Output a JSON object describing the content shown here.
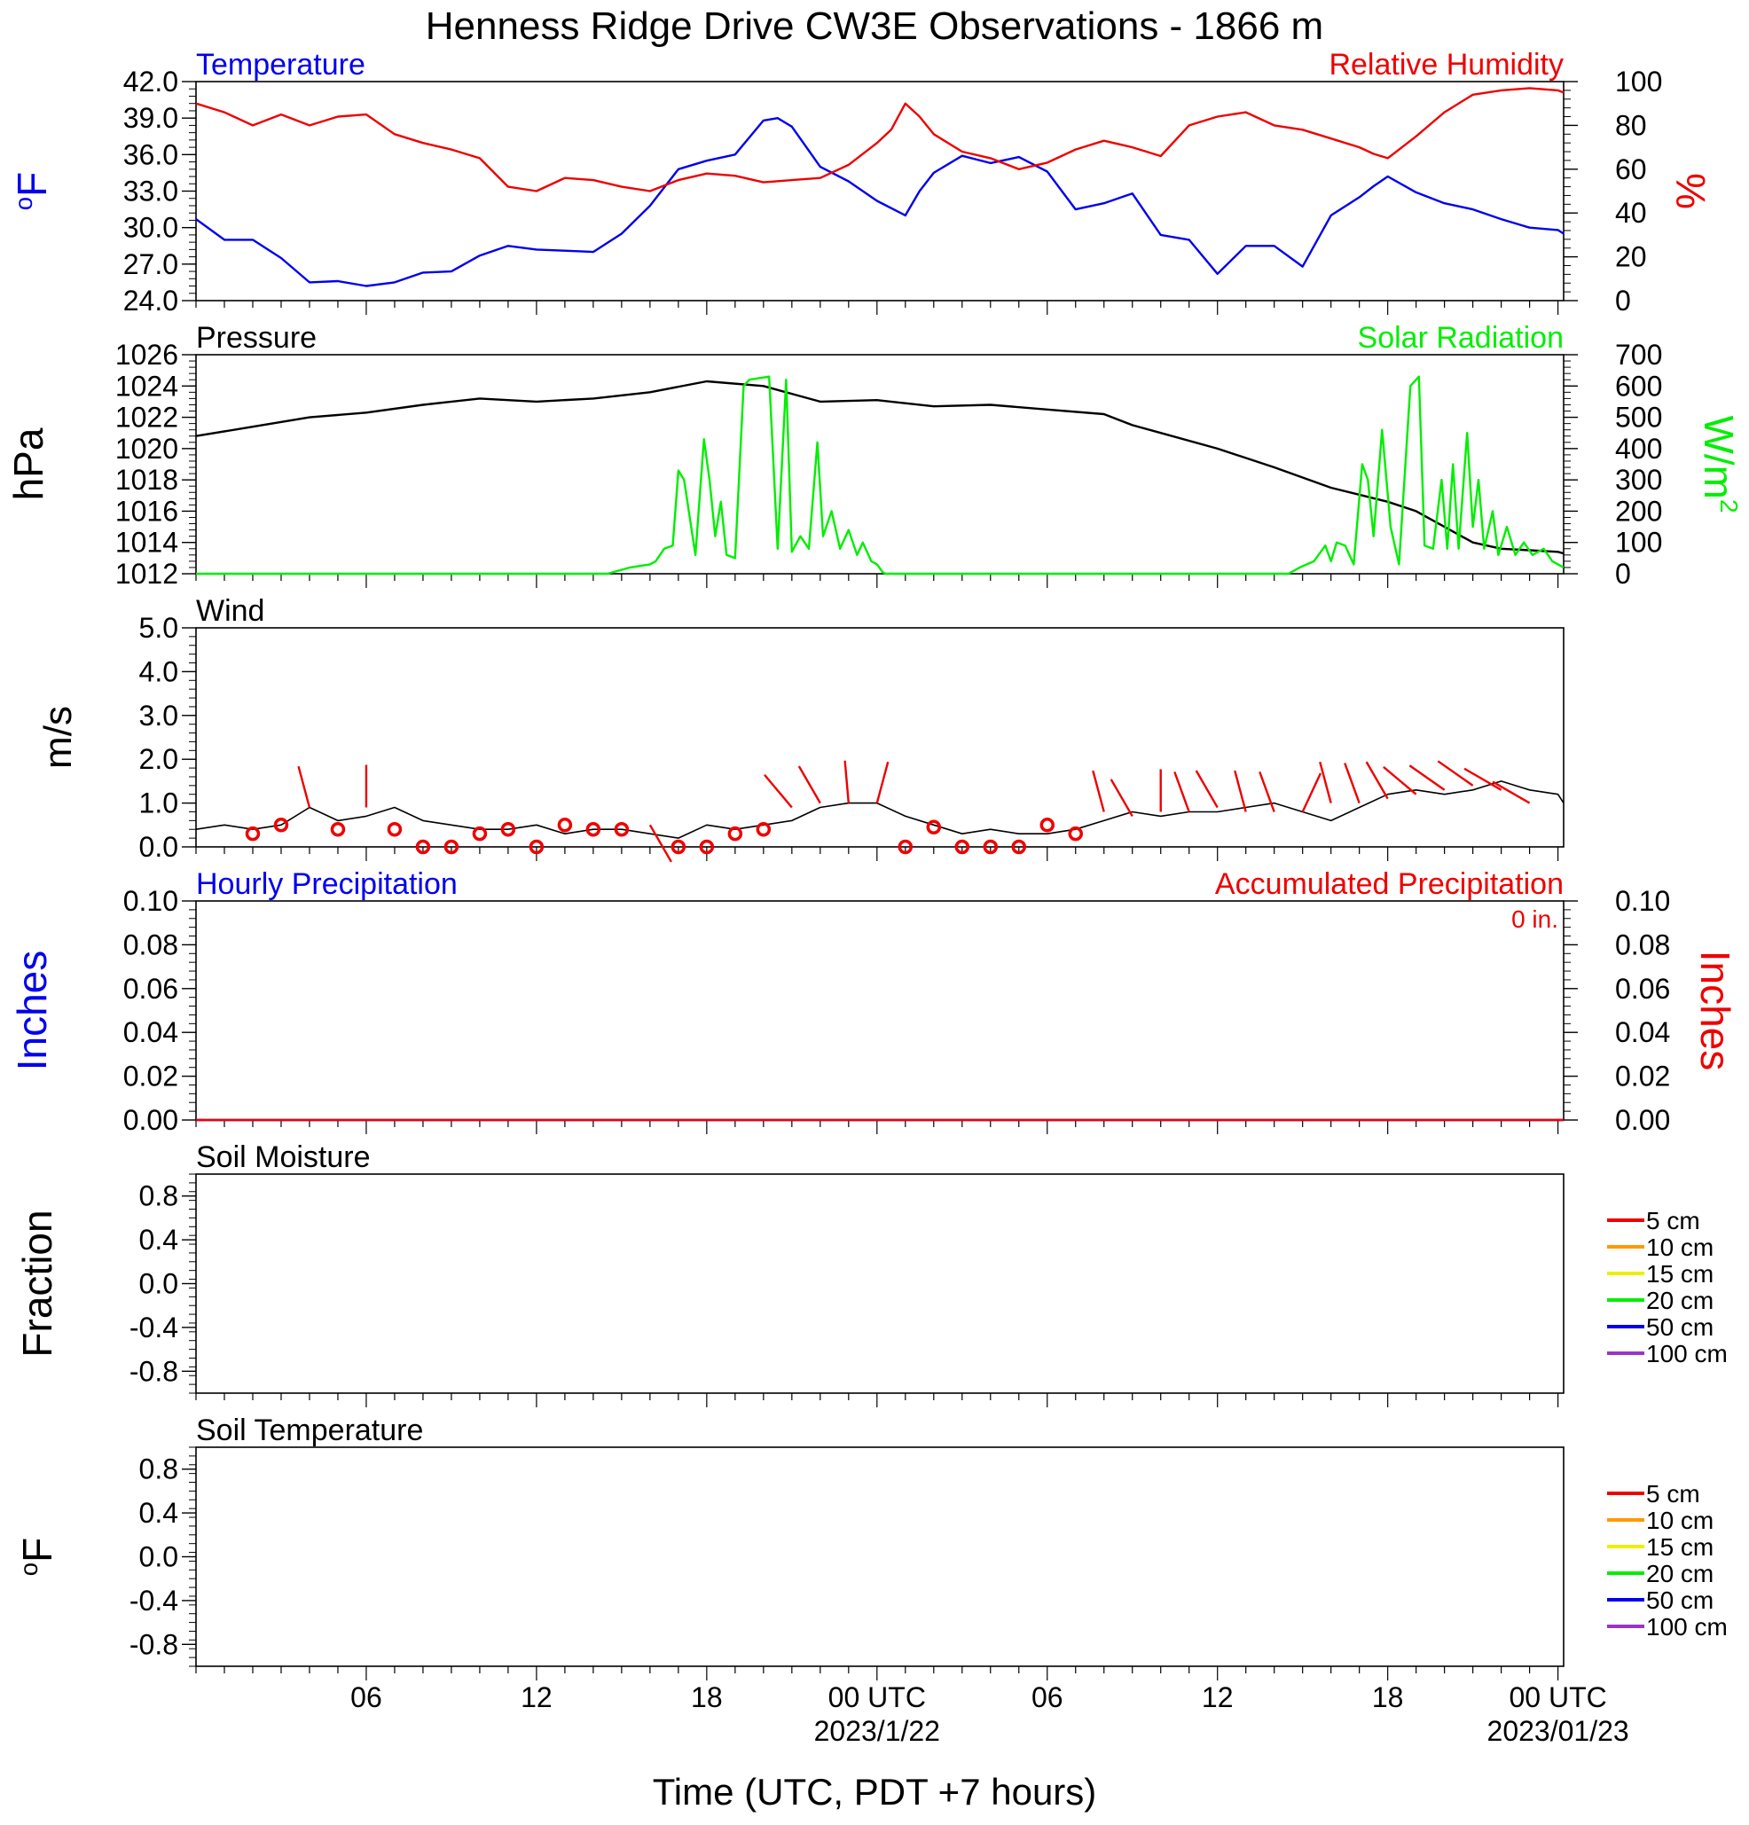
{
  "title": "Henness Ridge Drive CW3E Observations - 1866 m",
  "xlabel": "Time (UTC, PDT +7 hours)",
  "x_ticks": [
    {
      "h": 6,
      "label": "06"
    },
    {
      "h": 12,
      "label": "12"
    },
    {
      "h": 18,
      "label": "18"
    },
    {
      "h": 24,
      "label": "00 UTC",
      "sub": "2023/1/22"
    },
    {
      "h": 30,
      "label": "06"
    },
    {
      "h": 36,
      "label": "12"
    },
    {
      "h": 42,
      "label": "18"
    },
    {
      "h": 48,
      "label": "00 UTC",
      "sub": "2023/01/23"
    }
  ],
  "colors": {
    "temperature": "#0000ee",
    "humidity": "#ee0000",
    "pressure": "#000000",
    "solar": "#00ee00",
    "wind": "#000000",
    "wind_barb": "#ee0000",
    "precip_hourly": "#0000ee",
    "precip_accum": "#ee0000"
  },
  "chart_data": [
    {
      "id": "temp_rh",
      "type": "line",
      "left_title": "Temperature",
      "right_title": "Relative Humidity",
      "ylabel_left": "oF",
      "ylabel_right": "%",
      "ylim_left": [
        24,
        42
      ],
      "ylim_right": [
        0,
        100
      ],
      "yticks_left": [
        "24.0",
        "27.0",
        "30.0",
        "33.0",
        "36.0",
        "39.0",
        "42.0"
      ],
      "yticks_right": [
        "0",
        "20",
        "40",
        "60",
        "80",
        "100"
      ],
      "x_range_hours": [
        0,
        48.2
      ],
      "series": [
        {
          "name": "Temperature",
          "axis": "left",
          "color": "#0000ee",
          "x": [
            0,
            1,
            2,
            3,
            4,
            5,
            6,
            7,
            8,
            9,
            10,
            11,
            12,
            13,
            14,
            15,
            16,
            17,
            18,
            19,
            20,
            20.5,
            21,
            22,
            23,
            24,
            25,
            25.5,
            26,
            27,
            28,
            29,
            30,
            31,
            32,
            33,
            34,
            35,
            36,
            37,
            38,
            39,
            40,
            41,
            41.5,
            42,
            43,
            44,
            45,
            46,
            47,
            48,
            48.2
          ],
          "y": [
            30.7,
            29.0,
            29.0,
            27.5,
            25.5,
            25.6,
            25.2,
            25.5,
            26.3,
            26.4,
            27.7,
            28.5,
            28.2,
            28.1,
            28.0,
            29.5,
            31.8,
            34.8,
            35.5,
            36.0,
            38.8,
            39.0,
            38.3,
            35.0,
            33.8,
            32.2,
            31.0,
            33.0,
            34.5,
            35.9,
            35.3,
            35.8,
            34.6,
            31.5,
            32.0,
            32.8,
            29.4,
            29.0,
            26.2,
            28.5,
            28.5,
            26.8,
            31.0,
            32.5,
            33.4,
            34.2,
            32.9,
            32.0,
            31.5,
            30.7,
            30.0,
            29.8,
            29.5
          ]
        },
        {
          "name": "Relative Humidity",
          "axis": "right",
          "color": "#ee0000",
          "x": [
            0,
            1,
            2,
            3,
            4,
            5,
            6,
            7,
            8,
            9,
            10,
            11,
            12,
            13,
            14,
            15,
            16,
            17,
            18,
            19,
            20,
            21,
            22,
            23,
            24,
            24.5,
            25,
            25.5,
            26,
            27,
            28,
            29,
            30,
            31,
            32,
            33,
            34,
            35,
            36,
            37,
            38,
            39,
            40,
            41,
            41.5,
            42,
            43,
            44,
            45,
            46,
            47,
            48,
            48.2
          ],
          "y": [
            90,
            86,
            80,
            85,
            80,
            84,
            85,
            76,
            72,
            69,
            65,
            52,
            50,
            56,
            55,
            52,
            50,
            55,
            58,
            57,
            54,
            55,
            56,
            62,
            72,
            78,
            90,
            84,
            76,
            68,
            65,
            60,
            63,
            69,
            73,
            70,
            66,
            80,
            84,
            86,
            80,
            78,
            74,
            70,
            67,
            65,
            75,
            86,
            94,
            96,
            97,
            96,
            95
          ]
        }
      ]
    },
    {
      "id": "pressure_solar",
      "type": "line",
      "left_title": "Pressure",
      "right_title": "Solar Radiation",
      "ylabel_left": "hPa",
      "ylabel_right": "W/m2",
      "ylim_left": [
        1012,
        1026
      ],
      "ylim_right": [
        0,
        700
      ],
      "yticks_left": [
        "1012",
        "1014",
        "1016",
        "1018",
        "1020",
        "1022",
        "1024",
        "1026"
      ],
      "yticks_right": [
        "0",
        "100",
        "200",
        "300",
        "400",
        "500",
        "600",
        "700"
      ],
      "x_range_hours": [
        0,
        48.2
      ],
      "series": [
        {
          "name": "Pressure",
          "axis": "left",
          "color": "#000000",
          "x": [
            0,
            2,
            4,
            6,
            8,
            10,
            12,
            14,
            16,
            18,
            20,
            21,
            22,
            24,
            26,
            28,
            30,
            32,
            33,
            34,
            36,
            38,
            40,
            42,
            43,
            44,
            45,
            46,
            47,
            48,
            48.2
          ],
          "y": [
            1020.8,
            1021.4,
            1022.0,
            1022.3,
            1022.8,
            1023.2,
            1023.0,
            1023.2,
            1023.6,
            1024.3,
            1024.0,
            1023.5,
            1023.0,
            1023.1,
            1022.7,
            1022.8,
            1022.5,
            1022.2,
            1021.5,
            1021.0,
            1020.0,
            1018.8,
            1017.5,
            1016.6,
            1016.0,
            1015.0,
            1014.0,
            1013.6,
            1013.5,
            1013.4,
            1013.3
          ]
        },
        {
          "name": "Solar Radiation",
          "axis": "right",
          "color": "#00ee00",
          "x": [
            0,
            14.5,
            15.3,
            16.0,
            16.2,
            16.5,
            16.8,
            17.0,
            17.2,
            17.4,
            17.6,
            17.9,
            18.1,
            18.3,
            18.5,
            18.7,
            19.0,
            19.3,
            19.5,
            20.2,
            20.5,
            20.8,
            21.0,
            21.3,
            21.6,
            21.9,
            22.1,
            22.4,
            22.7,
            23.0,
            23.3,
            23.5,
            23.8,
            24.0,
            24.2,
            24.3,
            38.5,
            38.9,
            39.4,
            39.8,
            40.0,
            40.2,
            40.5,
            40.8,
            41.1,
            41.3,
            41.5,
            41.8,
            42.1,
            42.4,
            42.8,
            43.1,
            43.3,
            43.6,
            43.9,
            44.1,
            44.3,
            44.5,
            44.8,
            45.0,
            45.2,
            45.4,
            45.7,
            45.9,
            46.2,
            46.5,
            46.8,
            47.1,
            47.5,
            47.8,
            48.2
          ],
          "y": [
            0,
            0,
            20,
            30,
            40,
            80,
            90,
            330,
            300,
            180,
            60,
            430,
            300,
            120,
            230,
            60,
            50,
            600,
            620,
            630,
            80,
            620,
            70,
            120,
            80,
            420,
            120,
            200,
            80,
            140,
            60,
            100,
            40,
            30,
            5,
            0,
            0,
            20,
            40,
            90,
            40,
            100,
            90,
            30,
            350,
            300,
            120,
            460,
            150,
            30,
            600,
            630,
            90,
            80,
            300,
            80,
            350,
            80,
            450,
            150,
            300,
            80,
            200,
            60,
            150,
            60,
            100,
            60,
            80,
            40,
            20
          ]
        }
      ]
    },
    {
      "id": "wind",
      "type": "line",
      "left_title": "Wind",
      "ylabel_left": "m/s",
      "ylim_left": [
        0,
        5
      ],
      "yticks_left": [
        "0.0",
        "1.0",
        "2.0",
        "3.0",
        "4.0",
        "5.0"
      ],
      "x_range_hours": [
        0,
        48.2
      ],
      "series": [
        {
          "name": "Wind",
          "axis": "left",
          "color": "#000000",
          "x": [
            0,
            1,
            2,
            3,
            4,
            5,
            6,
            7,
            8,
            9,
            10,
            11,
            12,
            13,
            14,
            15,
            16,
            17,
            18,
            19,
            20,
            21,
            22,
            23,
            24,
            25,
            26,
            27,
            28,
            29,
            30,
            31,
            32,
            33,
            34,
            35,
            36,
            37,
            38,
            39,
            40,
            41,
            42,
            43,
            44,
            45,
            46,
            47,
            48,
            48.2
          ],
          "y": [
            0.4,
            0.5,
            0.4,
            0.5,
            0.9,
            0.6,
            0.7,
            0.9,
            0.6,
            0.5,
            0.4,
            0.4,
            0.5,
            0.3,
            0.4,
            0.4,
            0.3,
            0.2,
            0.5,
            0.4,
            0.5,
            0.6,
            0.9,
            1.0,
            1.0,
            0.7,
            0.5,
            0.3,
            0.4,
            0.3,
            0.3,
            0.4,
            0.6,
            0.8,
            0.7,
            0.8,
            0.8,
            0.9,
            1.0,
            0.8,
            0.6,
            0.9,
            1.2,
            1.3,
            1.2,
            1.3,
            1.5,
            1.3,
            1.2,
            1.0
          ]
        }
      ],
      "calm_markers": [
        {
          "h": 2,
          "v": 0.3
        },
        {
          "h": 3,
          "v": 0.5
        },
        {
          "h": 5,
          "v": 0.4
        },
        {
          "h": 7,
          "v": 0.4
        },
        {
          "h": 8,
          "v": 0.0
        },
        {
          "h": 9,
          "v": 0.0
        },
        {
          "h": 10,
          "v": 0.3
        },
        {
          "h": 11,
          "v": 0.4
        },
        {
          "h": 12,
          "v": 0.0
        },
        {
          "h": 13,
          "v": 0.5
        },
        {
          "h": 14,
          "v": 0.4
        },
        {
          "h": 15,
          "v": 0.4
        },
        {
          "h": 17,
          "v": 0.0
        },
        {
          "h": 18,
          "v": 0.0
        },
        {
          "h": 19,
          "v": 0.3
        },
        {
          "h": 20,
          "v": 0.4
        },
        {
          "h": 25,
          "v": 0.0
        },
        {
          "h": 26,
          "v": 0.45
        },
        {
          "h": 27,
          "v": 0.0
        },
        {
          "h": 28,
          "v": 0.0
        },
        {
          "h": 29,
          "v": 0.0
        },
        {
          "h": 30,
          "v": 0.5
        },
        {
          "h": 31,
          "v": 0.3
        }
      ],
      "barbs": [
        {
          "h": 4,
          "v": 0.9,
          "dir_deg": 345
        },
        {
          "h": 6,
          "v": 0.9,
          "dir_deg": 0
        },
        {
          "h": 16,
          "v": 0.5,
          "dir_deg": 150
        },
        {
          "h": 21,
          "v": 0.9,
          "dir_deg": 320
        },
        {
          "h": 22,
          "v": 1.0,
          "dir_deg": 330
        },
        {
          "h": 23,
          "v": 1.0,
          "dir_deg": 355
        },
        {
          "h": 24,
          "v": 1.0,
          "dir_deg": 15
        },
        {
          "h": 32,
          "v": 0.8,
          "dir_deg": 345
        },
        {
          "h": 33,
          "v": 0.7,
          "dir_deg": 330
        },
        {
          "h": 34,
          "v": 0.8,
          "dir_deg": 0
        },
        {
          "h": 35,
          "v": 0.8,
          "dir_deg": 340
        },
        {
          "h": 36,
          "v": 0.9,
          "dir_deg": 330
        },
        {
          "h": 37,
          "v": 0.8,
          "dir_deg": 345
        },
        {
          "h": 38,
          "v": 0.8,
          "dir_deg": 340
        },
        {
          "h": 39,
          "v": 0.8,
          "dir_deg": 25
        },
        {
          "h": 40,
          "v": 1.0,
          "dir_deg": 345
        },
        {
          "h": 41,
          "v": 1.0,
          "dir_deg": 340
        },
        {
          "h": 42,
          "v": 1.1,
          "dir_deg": 330
        },
        {
          "h": 43,
          "v": 1.2,
          "dir_deg": 310
        },
        {
          "h": 44,
          "v": 1.3,
          "dir_deg": 305
        },
        {
          "h": 45,
          "v": 1.4,
          "dir_deg": 305
        },
        {
          "h": 46,
          "v": 1.3,
          "dir_deg": 300
        },
        {
          "h": 47,
          "v": 1.0,
          "dir_deg": 300
        }
      ]
    },
    {
      "id": "precip",
      "type": "line",
      "left_title": "Hourly Precipitation",
      "right_title": "Accumulated Precipitation",
      "annotation": "0 in.",
      "ylabel_left": "Inches",
      "ylabel_right": "Inches",
      "ylim_left": [
        0,
        0.1
      ],
      "ylim_right": [
        0,
        0.1
      ],
      "yticks_left": [
        "0.00",
        "0.02",
        "0.04",
        "0.06",
        "0.08",
        "0.10"
      ],
      "yticks_right": [
        "0.00",
        "0.02",
        "0.04",
        "0.06",
        "0.08",
        "0.10"
      ],
      "x_range_hours": [
        0,
        48.2
      ],
      "series": [
        {
          "name": "Hourly Precipitation",
          "axis": "left",
          "color": "#0000ee",
          "x": [
            0,
            48.2
          ],
          "y": [
            0,
            0
          ]
        },
        {
          "name": "Accumulated Precipitation",
          "axis": "right",
          "color": "#ee0000",
          "x": [
            0,
            48.2
          ],
          "y": [
            0,
            0
          ]
        }
      ]
    },
    {
      "id": "soil_moisture",
      "type": "line",
      "left_title": "Soil Moisture",
      "ylabel_left": "Fraction",
      "ylim_left": [
        -1.0,
        1.0
      ],
      "yticks_left": [
        "-0.8",
        "-0.4",
        "0.0",
        "0.4",
        "0.8"
      ],
      "ytick_values": [
        -0.8,
        -0.4,
        0.0,
        0.4,
        0.8
      ],
      "legend": [
        {
          "label": "5 cm",
          "color": "#ee0000"
        },
        {
          "label": "10 cm",
          "color": "#ff9900"
        },
        {
          "label": "15 cm",
          "color": "#eeee00"
        },
        {
          "label": "20 cm",
          "color": "#00ee00"
        },
        {
          "label": "50 cm",
          "color": "#0000ee"
        },
        {
          "label": "100 cm",
          "color": "#9933cc"
        }
      ],
      "series": []
    },
    {
      "id": "soil_temperature",
      "type": "line",
      "left_title": "Soil Temperature",
      "ylabel_left": "oF",
      "ylim_left": [
        -1.0,
        1.0
      ],
      "yticks_left": [
        "-0.8",
        "-0.4",
        "0.0",
        "0.4",
        "0.8"
      ],
      "ytick_values": [
        -0.8,
        -0.4,
        0.0,
        0.4,
        0.8
      ],
      "legend": [
        {
          "label": "5 cm",
          "color": "#ee0000"
        },
        {
          "label": "10 cm",
          "color": "#ff9900"
        },
        {
          "label": "15 cm",
          "color": "#eeee00"
        },
        {
          "label": "20 cm",
          "color": "#00ee00"
        },
        {
          "label": "50 cm",
          "color": "#0000ee"
        },
        {
          "label": "100 cm",
          "color": "#9933cc"
        }
      ],
      "series": []
    }
  ]
}
